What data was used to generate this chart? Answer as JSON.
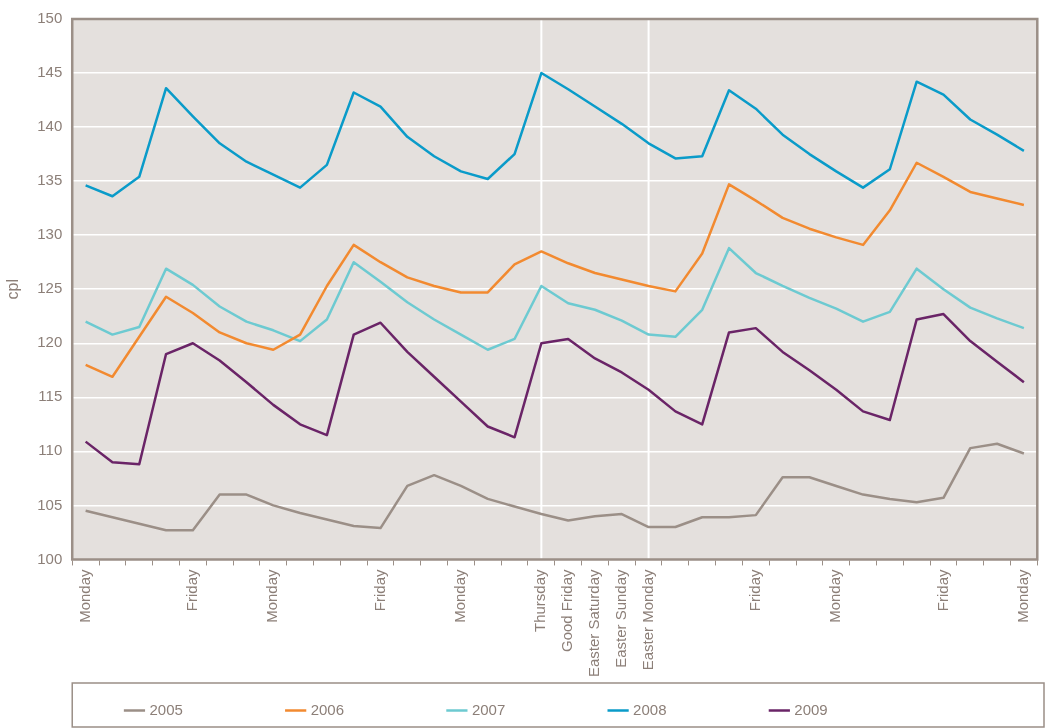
{
  "chart_data": {
    "type": "line",
    "ylabel": "cpl",
    "categories": [
      "Monday",
      null,
      null,
      null,
      "Friday",
      null,
      null,
      "Monday",
      null,
      null,
      null,
      "Friday",
      null,
      null,
      "Monday",
      null,
      null,
      "Thursday",
      "Good Friday",
      "Easter Saturday",
      "Easter Sunday",
      "Easter Monday",
      null,
      null,
      null,
      "Friday",
      null,
      null,
      "Monday",
      null,
      null,
      null,
      "Friday",
      null,
      null,
      "Monday"
    ],
    "series": [
      {
        "name": "2005",
        "color": "#9b8f87",
        "values": [
          104.5,
          103.9,
          103.3,
          102.7,
          102.7,
          106,
          106,
          105,
          104.3,
          103.7,
          103.1,
          102.9,
          106.8,
          107.8,
          106.8,
          105.6,
          104.9,
          104.2,
          103.6,
          104,
          104.2,
          103,
          103,
          103.9,
          103.9,
          104.1,
          107.6,
          107.6,
          106.8,
          106,
          105.6,
          105.3,
          105.7,
          110.3,
          110.7,
          109.8
        ]
      },
      {
        "name": "2006",
        "color": "#f28a30",
        "values": [
          118,
          116.9,
          120.6,
          124.3,
          122.8,
          121,
          120,
          119.4,
          120.8,
          125.3,
          129.1,
          127.5,
          126.1,
          125.3,
          124.7,
          124.7,
          127.3,
          128.5,
          127.4,
          126.5,
          125.9,
          125.3,
          124.8,
          128.3,
          134.7,
          133.2,
          131.6,
          130.6,
          129.8,
          129.1,
          132.3,
          136.7,
          135.4,
          134,
          133.4,
          132.8
        ]
      },
      {
        "name": "2007",
        "color": "#6dcad1",
        "values": [
          122,
          120.8,
          121.5,
          126.9,
          125.4,
          123.4,
          122,
          121.2,
          120.2,
          122.2,
          127.5,
          125.7,
          123.8,
          122.2,
          120.8,
          119.4,
          120.4,
          125.3,
          123.7,
          123.1,
          122.1,
          120.8,
          120.6,
          123.1,
          128.8,
          126.5,
          125.3,
          124.2,
          123.2,
          122,
          122.9,
          126.9,
          125,
          123.3,
          122.3,
          121.4
        ]
      },
      {
        "name": "2008",
        "color": "#0a9bc9",
        "values": [
          134.6,
          133.6,
          135.4,
          143.6,
          141,
          138.5,
          136.8,
          135.6,
          134.4,
          136.5,
          143.2,
          141.9,
          139.1,
          137.3,
          135.9,
          135.2,
          137.5,
          145,
          143.5,
          141.9,
          140.3,
          138.5,
          137.1,
          137.3,
          143.4,
          141.7,
          139.3,
          137.5,
          135.9,
          134.4,
          136.1,
          144.2,
          143,
          140.7,
          139.3,
          137.8
        ]
      },
      {
        "name": "2009",
        "color": "#6a2467",
        "values": [
          110.9,
          109,
          108.8,
          119,
          120,
          118.4,
          116.4,
          114.3,
          112.5,
          111.5,
          120.8,
          121.9,
          119.2,
          116.9,
          114.6,
          112.3,
          111.3,
          120,
          120.4,
          118.6,
          117.3,
          115.7,
          113.7,
          112.5,
          121,
          121.4,
          119.2,
          117.5,
          115.7,
          113.7,
          112.9,
          122.2,
          122.7,
          120.2,
          118.3,
          116.4
        ]
      }
    ],
    "ylim": [
      100,
      150
    ],
    "yticks": [
      100,
      105,
      110,
      115,
      120,
      125,
      130,
      135,
      140,
      145,
      150
    ],
    "ref_lines": [
      {
        "axis": "x",
        "value": "Thursday",
        "color": "#ffffff"
      },
      {
        "axis": "x",
        "value": "Easter Monday",
        "color": "#ffffff"
      }
    ],
    "grid": "y",
    "legend": "bottom",
    "marker": "none",
    "line_style": "solid"
  }
}
